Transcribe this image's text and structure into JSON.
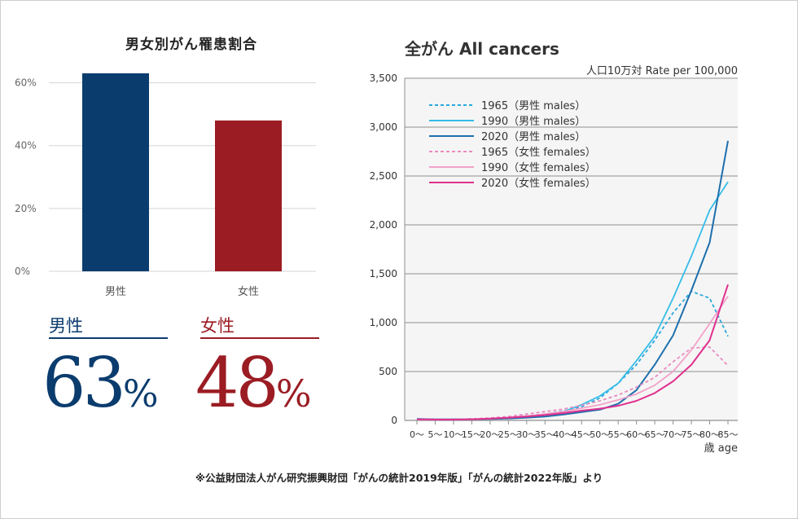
{
  "chart_data": [
    {
      "type": "bar",
      "title": "男女別がん罹患割合",
      "categories": [
        "男性",
        "女性"
      ],
      "values": [
        63,
        48
      ],
      "yticks": [
        "0%",
        "20%",
        "40%",
        "60%"
      ],
      "ylim": [
        0,
        70
      ],
      "grid": true,
      "colors": [
        "#0b3c6e",
        "#9b1c23"
      ]
    },
    {
      "type": "line",
      "title": "全がん All cancers",
      "subtitle": "人口10万対  Rate per 100,000",
      "xlabel": "歳 age",
      "ylim": [
        0,
        3500
      ],
      "yticks": [
        "0",
        "500",
        "1,000",
        "1,500",
        "2,000",
        "2,500",
        "3,000",
        "3,500"
      ],
      "categories": [
        "0～",
        "5～",
        "10～",
        "15～",
        "20～",
        "25～",
        "30～",
        "35～",
        "40～",
        "45～",
        "50～",
        "55～",
        "60～",
        "65～",
        "70～",
        "75～",
        "80～",
        "85～"
      ],
      "grid": true,
      "legend_position": "top-left",
      "series": [
        {
          "name": "1965（男性 males）",
          "color": "#29a8df",
          "dashed": true,
          "values": [
            15,
            10,
            10,
            15,
            20,
            30,
            45,
            65,
            95,
            140,
            230,
            380,
            570,
            820,
            1100,
            1320,
            1250,
            860
          ]
        },
        {
          "name": "1990（男性 males）",
          "color": "#35bde8",
          "dashed": false,
          "values": [
            15,
            10,
            10,
            12,
            15,
            22,
            35,
            55,
            90,
            160,
            250,
            380,
            610,
            860,
            1250,
            1680,
            2150,
            2440
          ]
        },
        {
          "name": "2020（男性 males）",
          "color": "#1d6fad",
          "dashed": false,
          "values": [
            15,
            10,
            10,
            12,
            15,
            20,
            28,
            40,
            60,
            85,
            110,
            170,
            310,
            570,
            870,
            1330,
            1820,
            2860
          ]
        },
        {
          "name": "1965（女性 females）",
          "color": "#e88bbf",
          "dashed": true,
          "values": [
            10,
            10,
            10,
            15,
            25,
            40,
            65,
            90,
            115,
            155,
            200,
            260,
            340,
            440,
            600,
            740,
            750,
            560
          ]
        },
        {
          "name": "1990（女性 females）",
          "color": "#f2a2c8",
          "dashed": false,
          "values": [
            10,
            8,
            8,
            12,
            18,
            30,
            45,
            65,
            90,
            125,
            160,
            210,
            270,
            360,
            500,
            720,
            990,
            1270
          ]
        },
        {
          "name": "2020（女性 females）",
          "color": "#e0308e",
          "dashed": false,
          "values": [
            12,
            8,
            8,
            12,
            18,
            28,
            40,
            55,
            75,
            100,
            120,
            150,
            200,
            280,
            400,
            570,
            820,
            1390
          ]
        }
      ]
    }
  ],
  "stats": {
    "male": {
      "label": "男性",
      "value": "63",
      "unit": "%",
      "color": "#0b3c6e"
    },
    "female": {
      "label": "女性",
      "value": "48",
      "unit": "%",
      "color": "#9b1c23"
    }
  },
  "source_note": "※公益財団法人がん研究振興財団「がんの統計2019年版」「がんの統計2022年版」より"
}
